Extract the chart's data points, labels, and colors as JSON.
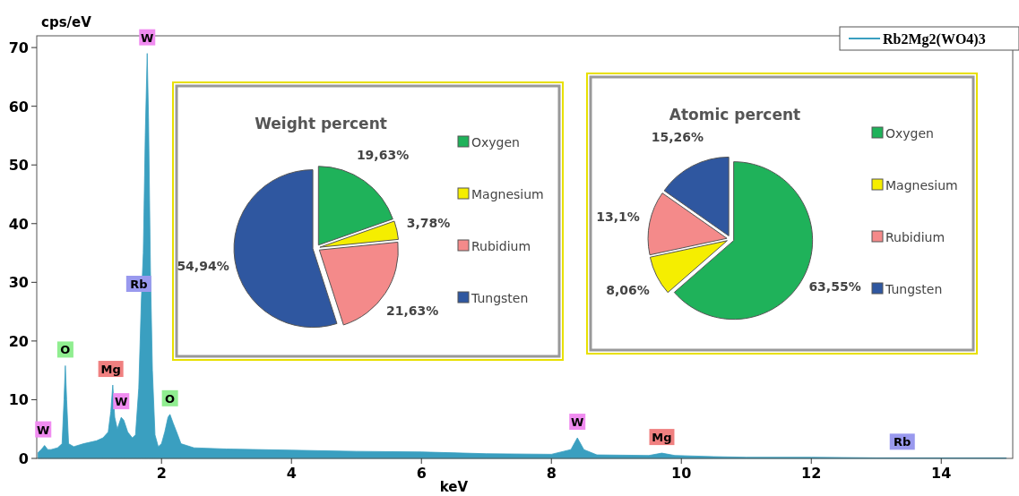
{
  "chart_data": [
    {
      "type": "area",
      "xlabel": "keV",
      "ylabel": "cps/eV",
      "xlim": [
        0.08,
        15.1
      ],
      "ylim": [
        0,
        72
      ],
      "xticks": [
        2,
        4,
        6,
        8,
        10,
        12,
        14
      ],
      "yticks": [
        0,
        10,
        20,
        30,
        40,
        50,
        60,
        70
      ],
      "legend": "top right",
      "grid": false,
      "series": [
        {
          "name": "Rb2Mg2(WO4)3",
          "color": "#3a9fc0",
          "x": [
            0.1,
            0.15,
            0.2,
            0.25,
            0.3,
            0.4,
            0.47,
            0.5,
            0.52,
            0.54,
            0.57,
            0.65,
            0.8,
            1.0,
            1.1,
            1.18,
            1.22,
            1.25,
            1.28,
            1.32,
            1.38,
            1.42,
            1.48,
            1.55,
            1.6,
            1.65,
            1.69,
            1.72,
            1.75,
            1.78,
            1.8,
            1.83,
            1.86,
            1.9,
            1.95,
            2.0,
            2.05,
            2.1,
            2.13,
            2.18,
            2.25,
            2.3,
            2.5,
            3,
            4,
            5,
            6,
            7,
            8,
            8.3,
            8.4,
            8.5,
            8.7,
            9.5,
            9.7,
            9.9,
            10.5,
            11,
            12,
            13,
            14,
            15
          ],
          "values": [
            1,
            1.5,
            2.2,
            1.5,
            1.5,
            1.8,
            2.5,
            10,
            15.8,
            10,
            2.5,
            2,
            2.5,
            3,
            3.5,
            4.5,
            8,
            12.5,
            7,
            5,
            7,
            6.5,
            4.5,
            3.5,
            4,
            12,
            27,
            35,
            55,
            69,
            58,
            32,
            15,
            4,
            2,
            2.5,
            4.5,
            7,
            7.5,
            6,
            4,
            2.5,
            1.8,
            1.6,
            1.4,
            1.2,
            1.1,
            0.8,
            0.7,
            1.5,
            3.5,
            1.5,
            0.6,
            0.5,
            0.9,
            0.5,
            0.3,
            0.2,
            0.2,
            0.1,
            0.1,
            0.1
          ]
        }
      ],
      "annotations": [
        {
          "text": "W",
          "x": 0.18,
          "y": 2.2
        },
        {
          "text": "O",
          "x": 0.52,
          "y": 15.8
        },
        {
          "text": "Mg",
          "x": 1.22,
          "y": 12.5
        },
        {
          "text": "W",
          "x": 1.38,
          "y": 7
        },
        {
          "text": "Rb",
          "x": 1.65,
          "y": 27
        },
        {
          "text": "W",
          "x": 1.78,
          "y": 69
        },
        {
          "text": "O",
          "x": 2.13,
          "y": 7.5
        },
        {
          "text": "W",
          "x": 8.4,
          "y": 3.5
        },
        {
          "text": "Mg",
          "x": 9.7,
          "y": 0.9
        },
        {
          "text": "Rb",
          "x": 13.4,
          "y": 0.1
        }
      ]
    },
    {
      "type": "pie",
      "title": "Weight percent",
      "legend": "right",
      "categories": [
        "Oxygen",
        "Magnesium",
        "Rubidium",
        "Tungsten"
      ],
      "values": [
        19.63,
        3.78,
        21.63,
        54.94
      ],
      "colors": [
        "#1fb25a",
        "#f5ee00",
        "#f48a8a",
        "#2f57a0"
      ],
      "value_labels": [
        "19,63%",
        "3,78%",
        "21,63%",
        "54,94%"
      ]
    },
    {
      "type": "pie",
      "title": "Atomic percent",
      "legend": "right",
      "categories": [
        "Oxygen",
        "Magnesium",
        "Rubidium",
        "Tungsten"
      ],
      "values": [
        63.55,
        8.06,
        13.1,
        15.26
      ],
      "colors": [
        "#1fb25a",
        "#f5ee00",
        "#f48a8a",
        "#2f57a0"
      ],
      "value_labels": [
        "63,55%",
        "8,06%",
        "13,1%",
        "15,26%"
      ]
    }
  ]
}
